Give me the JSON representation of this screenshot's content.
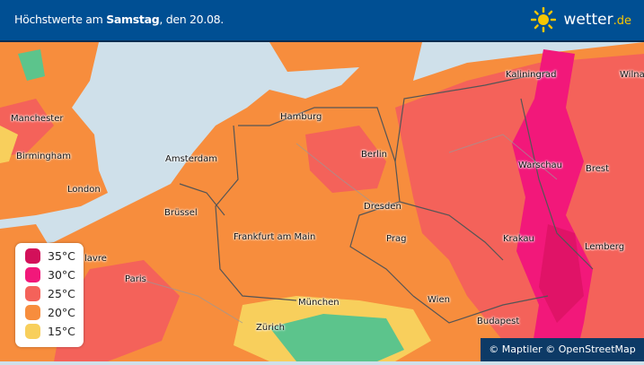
{
  "header": {
    "title_light": "Höchstwerte am ",
    "title_bold": "Samstag",
    "title_rest": ", den 20.08.",
    "logo_main": "wetter",
    "logo_suffix": ".de"
  },
  "colors": {
    "header": "#004f93",
    "sea": "#cfe0ea",
    "c35": "#d3105a",
    "c30": "#f2187a",
    "c25": "#f4625a",
    "c20": "#f78d3d",
    "c15": "#f8cf5c",
    "logo_sun": "#f7c600"
  },
  "legend": [
    {
      "label": "35°C",
      "color": "#d3105a"
    },
    {
      "label": "30°C",
      "color": "#f2187a"
    },
    {
      "label": "25°C",
      "color": "#f4625a"
    },
    {
      "label": "20°C",
      "color": "#f78d3d"
    },
    {
      "label": "15°C",
      "color": "#f8cf5c"
    }
  ],
  "cities": [
    "Kaliningrad",
    "Wilna",
    "Manchester",
    "Hamburg",
    "Birmingham",
    "Amsterdam",
    "Berlin",
    "Warschau",
    "Brest",
    "London",
    "Brüssel",
    "Dresden",
    "Frankfurt am Main",
    "Prag",
    "Krakau",
    "Lemberg",
    "lavre",
    "Paris",
    "München",
    "Wien",
    "Zürich",
    "Budapest"
  ],
  "attribution": "© Maptiler © OpenStreetMap"
}
